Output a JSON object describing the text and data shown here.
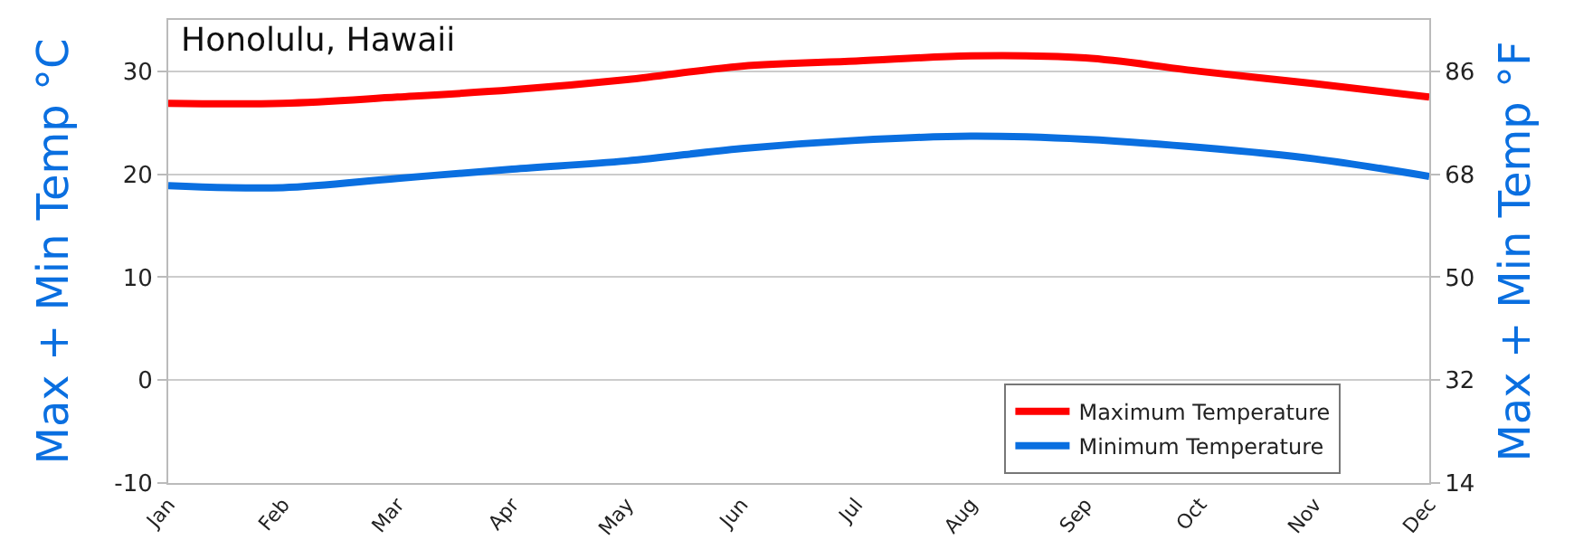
{
  "chart_data": {
    "type": "line",
    "title": "Honolulu, Hawaii",
    "ylabel": "Max + Min Temp °C",
    "y2label": "Max + Min Temp °F",
    "categories": [
      "Jan",
      "Feb",
      "Mar",
      "Apr",
      "May",
      "Jun",
      "Jul",
      "Aug",
      "Sep",
      "Oct",
      "Nov",
      "Dec"
    ],
    "series": [
      {
        "name": "Maximum Temperature",
        "color": "#ff0000",
        "values": [
          26.9,
          26.9,
          27.5,
          28.2,
          29.2,
          30.5,
          31.0,
          31.5,
          31.3,
          30.0,
          28.8,
          27.5
        ]
      },
      {
        "name": "Minimum Temperature",
        "color": "#0a6fe0",
        "values": [
          18.9,
          18.7,
          19.6,
          20.5,
          21.3,
          22.5,
          23.3,
          23.7,
          23.4,
          22.6,
          21.5,
          19.8
        ]
      }
    ],
    "ylim": [
      -10,
      35
    ],
    "yticks": [
      -10,
      0,
      10,
      20,
      30
    ],
    "y2lim": [
      14,
      95
    ],
    "y2ticks": [
      14,
      32,
      50,
      68,
      86
    ],
    "grid": "y",
    "legend": "bottom right",
    "marker": "none",
    "line_style": "solid"
  }
}
